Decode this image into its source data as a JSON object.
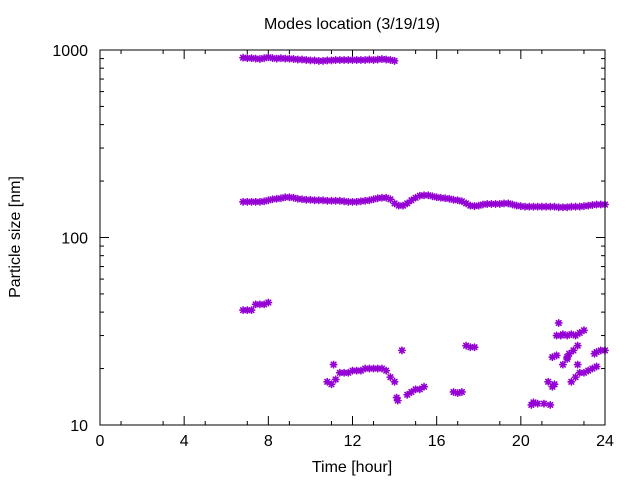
{
  "chart_data": {
    "type": "scatter",
    "title": "Modes location (3/19/19)",
    "xlabel": "Time [hour]",
    "ylabel": "Particle size [nm]",
    "xlim": [
      0,
      24
    ],
    "ylim": [
      10,
      1000
    ],
    "yscale": "log",
    "x_ticks": [
      0,
      4,
      8,
      12,
      16,
      20,
      24
    ],
    "x_tick_labels": [
      "0",
      "4",
      "8",
      "12",
      "16",
      "20",
      "24"
    ],
    "y_ticks": [
      10,
      100,
      1000
    ],
    "y_tick_labels": [
      "10",
      "100",
      "1000"
    ],
    "grid": false,
    "legend": "none",
    "marker_color": "#9400d3",
    "series": [
      {
        "points": [
          [
            6.8,
            910
          ],
          [
            7.0,
            905
          ],
          [
            7.2,
            905
          ],
          [
            7.4,
            900
          ],
          [
            7.6,
            895
          ],
          [
            7.8,
            905
          ],
          [
            8.0,
            915
          ],
          [
            8.2,
            905
          ],
          [
            8.4,
            900
          ],
          [
            8.6,
            905
          ],
          [
            8.8,
            900
          ],
          [
            9.0,
            900
          ],
          [
            9.2,
            895
          ],
          [
            9.4,
            890
          ],
          [
            9.6,
            890
          ],
          [
            9.8,
            885
          ],
          [
            10.0,
            880
          ],
          [
            10.2,
            880
          ],
          [
            10.4,
            875
          ],
          [
            10.6,
            875
          ],
          [
            10.8,
            880
          ],
          [
            11.0,
            880
          ],
          [
            11.2,
            885
          ],
          [
            11.4,
            885
          ],
          [
            11.6,
            885
          ],
          [
            11.8,
            885
          ],
          [
            12.0,
            885
          ],
          [
            12.2,
            885
          ],
          [
            12.4,
            885
          ],
          [
            12.6,
            885
          ],
          [
            12.8,
            890
          ],
          [
            13.0,
            885
          ],
          [
            13.2,
            890
          ],
          [
            13.4,
            895
          ],
          [
            13.6,
            890
          ],
          [
            13.8,
            885
          ],
          [
            14.0,
            875
          ],
          [
            6.8,
            155
          ],
          [
            7.0,
            155
          ],
          [
            7.2,
            155
          ],
          [
            7.4,
            155
          ],
          [
            7.6,
            155
          ],
          [
            7.8,
            156
          ],
          [
            8.0,
            158
          ],
          [
            8.2,
            160
          ],
          [
            8.4,
            161
          ],
          [
            8.6,
            162
          ],
          [
            8.8,
            164
          ],
          [
            9.0,
            164
          ],
          [
            9.2,
            163
          ],
          [
            9.4,
            161
          ],
          [
            9.6,
            160
          ],
          [
            9.8,
            159
          ],
          [
            10.0,
            159
          ],
          [
            10.2,
            158
          ],
          [
            10.4,
            158
          ],
          [
            10.6,
            158
          ],
          [
            10.8,
            157
          ],
          [
            11.0,
            157
          ],
          [
            11.2,
            157
          ],
          [
            11.4,
            157
          ],
          [
            11.6,
            156
          ],
          [
            11.8,
            155
          ],
          [
            12.0,
            155
          ],
          [
            12.2,
            155
          ],
          [
            12.4,
            156
          ],
          [
            12.6,
            157
          ],
          [
            12.8,
            158
          ],
          [
            13.0,
            160
          ],
          [
            13.2,
            162
          ],
          [
            13.4,
            163
          ],
          [
            13.6,
            163
          ],
          [
            13.8,
            160
          ],
          [
            14.0,
            152
          ],
          [
            14.2,
            148
          ],
          [
            14.4,
            148
          ],
          [
            14.6,
            152
          ],
          [
            14.8,
            158
          ],
          [
            15.0,
            163
          ],
          [
            15.2,
            167
          ],
          [
            15.4,
            168
          ],
          [
            15.6,
            168
          ],
          [
            15.8,
            166
          ],
          [
            16.0,
            164
          ],
          [
            16.2,
            163
          ],
          [
            16.4,
            162
          ],
          [
            16.6,
            161
          ],
          [
            16.8,
            159
          ],
          [
            17.0,
            158
          ],
          [
            17.2,
            156
          ],
          [
            17.4,
            152
          ],
          [
            17.6,
            148
          ],
          [
            17.8,
            147
          ],
          [
            18.0,
            148
          ],
          [
            18.2,
            150
          ],
          [
            18.4,
            151
          ],
          [
            18.6,
            151
          ],
          [
            18.8,
            151
          ],
          [
            19.0,
            151
          ],
          [
            19.2,
            152
          ],
          [
            19.4,
            152
          ],
          [
            19.6,
            150
          ],
          [
            19.8,
            148
          ],
          [
            20.0,
            147
          ],
          [
            20.2,
            146
          ],
          [
            20.4,
            146
          ],
          [
            20.6,
            146
          ],
          [
            20.8,
            146
          ],
          [
            21.0,
            146
          ],
          [
            21.2,
            146
          ],
          [
            21.4,
            146
          ],
          [
            21.6,
            146
          ],
          [
            21.8,
            145
          ],
          [
            22.0,
            145
          ],
          [
            22.2,
            145
          ],
          [
            22.4,
            146
          ],
          [
            22.6,
            146
          ],
          [
            22.8,
            146
          ],
          [
            23.0,
            147
          ],
          [
            23.2,
            148
          ],
          [
            23.4,
            149
          ],
          [
            23.6,
            150
          ],
          [
            23.8,
            150
          ],
          [
            24.0,
            150
          ],
          [
            6.8,
            41
          ],
          [
            7.0,
            41
          ],
          [
            7.2,
            41
          ],
          [
            7.4,
            44
          ],
          [
            7.6,
            44
          ],
          [
            7.8,
            44
          ],
          [
            8.0,
            45
          ],
          [
            10.8,
            17
          ],
          [
            11.0,
            16.5
          ],
          [
            11.1,
            21
          ],
          [
            11.2,
            17.5
          ],
          [
            11.4,
            19
          ],
          [
            11.6,
            19
          ],
          [
            11.8,
            19
          ],
          [
            12.0,
            19.5
          ],
          [
            12.2,
            19.5
          ],
          [
            12.4,
            19.5
          ],
          [
            12.6,
            20
          ],
          [
            12.8,
            20
          ],
          [
            13.0,
            20
          ],
          [
            13.2,
            20
          ],
          [
            13.4,
            20
          ],
          [
            13.6,
            19.5
          ],
          [
            13.8,
            18
          ],
          [
            14.0,
            17
          ],
          [
            14.1,
            14
          ],
          [
            14.15,
            13.5
          ],
          [
            14.35,
            25
          ],
          [
            14.6,
            14.5
          ],
          [
            14.8,
            15
          ],
          [
            15.0,
            15.5
          ],
          [
            15.2,
            15.5
          ],
          [
            15.4,
            16
          ],
          [
            16.8,
            15
          ],
          [
            17.0,
            14.8
          ],
          [
            17.2,
            15
          ],
          [
            17.4,
            26.5
          ],
          [
            17.6,
            26
          ],
          [
            17.8,
            26
          ],
          [
            20.5,
            12.8
          ],
          [
            20.6,
            13.2
          ],
          [
            20.8,
            13
          ],
          [
            21.1,
            13
          ],
          [
            21.4,
            12.8
          ],
          [
            21.3,
            17
          ],
          [
            21.5,
            16
          ],
          [
            21.6,
            16.5
          ],
          [
            21.5,
            23
          ],
          [
            21.7,
            23.5
          ],
          [
            21.8,
            35
          ],
          [
            21.7,
            30
          ],
          [
            21.9,
            30
          ],
          [
            22.0,
            30.5
          ],
          [
            22.2,
            30
          ],
          [
            22.4,
            30.5
          ],
          [
            22.6,
            30
          ],
          [
            22.8,
            31
          ],
          [
            23.0,
            32
          ],
          [
            22.0,
            21
          ],
          [
            22.2,
            23
          ],
          [
            22.3,
            24
          ],
          [
            22.5,
            25
          ],
          [
            22.4,
            17
          ],
          [
            22.6,
            18
          ],
          [
            22.7,
            21
          ],
          [
            22.8,
            19
          ],
          [
            23.0,
            19
          ],
          [
            23.2,
            19.5
          ],
          [
            23.4,
            20
          ],
          [
            23.5,
            24
          ],
          [
            23.6,
            24.5
          ],
          [
            23.8,
            25
          ],
          [
            24.0,
            25
          ],
          [
            22.2,
            22.5
          ],
          [
            22.7,
            26.5
          ],
          [
            23.6,
            20.5
          ]
        ]
      }
    ]
  }
}
